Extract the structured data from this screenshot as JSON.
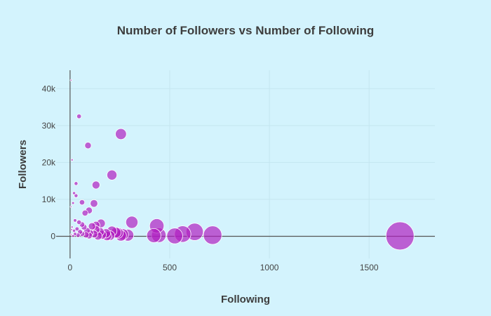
{
  "chart_data": {
    "type": "scatter",
    "title": "Number of Followers vs Number of Following",
    "xlabel": "Following",
    "ylabel": "Followers",
    "xlim": [
      -70,
      1830
    ],
    "ylim": [
      -6000,
      45000
    ],
    "x_ticks": [
      0,
      500,
      1000,
      1500
    ],
    "x_tick_labels": [
      "0",
      "500",
      "1000",
      "1500"
    ],
    "y_ticks": [
      0,
      10000,
      20000,
      30000,
      40000
    ],
    "y_tick_labels": [
      "0",
      "10k",
      "20k",
      "30k",
      "40k"
    ],
    "grid": true,
    "colors": {
      "background": "#d3f3fd",
      "marker": "#b020c0",
      "marker_edge": "#ffffff"
    },
    "bubble_size_encodes": "following",
    "series": [
      {
        "points": [
          {
            "x": 5,
            "y": 42300
          },
          {
            "x": 45,
            "y": 32500
          },
          {
            "x": 90,
            "y": 24600
          },
          {
            "x": 255,
            "y": 27700
          },
          {
            "x": 10,
            "y": 20700
          },
          {
            "x": 210,
            "y": 16600
          },
          {
            "x": 130,
            "y": 13900
          },
          {
            "x": 30,
            "y": 14300
          },
          {
            "x": 20,
            "y": 11700
          },
          {
            "x": 30,
            "y": 11000
          },
          {
            "x": 120,
            "y": 8900
          },
          {
            "x": 60,
            "y": 9200
          },
          {
            "x": 95,
            "y": 7000
          },
          {
            "x": 75,
            "y": 6300
          },
          {
            "x": 15,
            "y": 9000
          },
          {
            "x": 5,
            "y": 8000
          },
          {
            "x": 310,
            "y": 3800
          },
          {
            "x": 435,
            "y": 2800
          },
          {
            "x": 155,
            "y": 3500
          },
          {
            "x": 25,
            "y": 4300
          },
          {
            "x": 45,
            "y": 3800
          },
          {
            "x": 10,
            "y": 2500
          },
          {
            "x": 8,
            "y": 1800
          },
          {
            "x": 20,
            "y": 1500
          },
          {
            "x": 60,
            "y": 3200
          },
          {
            "x": 70,
            "y": 2500
          },
          {
            "x": 110,
            "y": 2700
          },
          {
            "x": 130,
            "y": 3000
          },
          {
            "x": 35,
            "y": 2000
          },
          {
            "x": 50,
            "y": 1200
          },
          {
            "x": 85,
            "y": 1500
          },
          {
            "x": 100,
            "y": 900
          },
          {
            "x": 150,
            "y": 1200
          },
          {
            "x": 180,
            "y": 800
          },
          {
            "x": 210,
            "y": 1400
          },
          {
            "x": 240,
            "y": 900
          },
          {
            "x": 265,
            "y": 500
          },
          {
            "x": 290,
            "y": 300
          },
          {
            "x": 200,
            "y": 200
          },
          {
            "x": 140,
            "y": 100
          },
          {
            "x": 120,
            "y": 600
          },
          {
            "x": 80,
            "y": 400
          },
          {
            "x": 40,
            "y": 300
          },
          {
            "x": 15,
            "y": 100
          },
          {
            "x": 5,
            "y": 500
          },
          {
            "x": 420,
            "y": 200
          },
          {
            "x": 445,
            "y": 300
          },
          {
            "x": 525,
            "y": 100
          },
          {
            "x": 565,
            "y": 600
          },
          {
            "x": 625,
            "y": 1200
          },
          {
            "x": 715,
            "y": 300
          },
          {
            "x": 1655,
            "y": 100
          },
          {
            "x": 255,
            "y": 200
          },
          {
            "x": 185,
            "y": 100
          },
          {
            "x": 230,
            "y": 1000
          },
          {
            "x": 160,
            "y": 400
          },
          {
            "x": 60,
            "y": 700
          },
          {
            "x": 25,
            "y": 600
          },
          {
            "x": 95,
            "y": 200
          },
          {
            "x": 130,
            "y": 1800
          }
        ]
      }
    ]
  }
}
